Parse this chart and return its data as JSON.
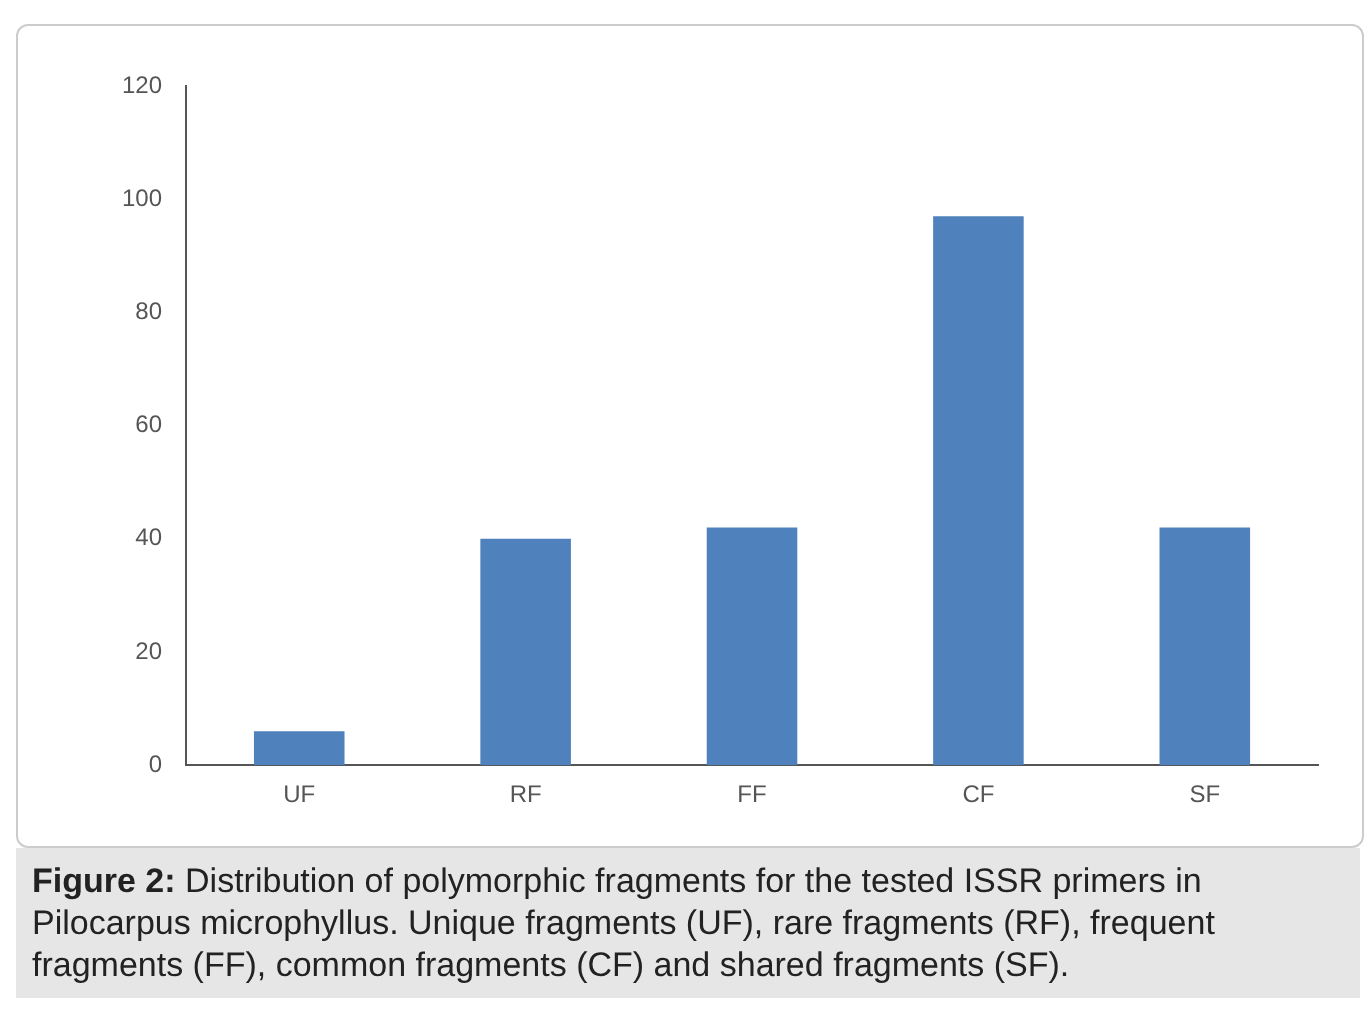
{
  "chart_data": {
    "type": "bar",
    "title": "Figure 2:",
    "annotations": [
      "Distribution of polymorphic fragments for the tested ISSR primers in Pilocarpus microphyllus. Unique fragments (UF), rare fragments (RF), frequent fragments (FF), common fragments (CF) and shared fragments (SF)."
    ],
    "categories": [
      "UF",
      "RF",
      "FF",
      "CF",
      "SF"
    ],
    "values": [
      6,
      40,
      42,
      97,
      42
    ],
    "color": "#4f81bd",
    "ylim": [
      0,
      120
    ],
    "yticks": [
      0,
      20,
      40,
      60,
      80,
      100,
      120
    ],
    "grid": false,
    "legend": false
  }
}
